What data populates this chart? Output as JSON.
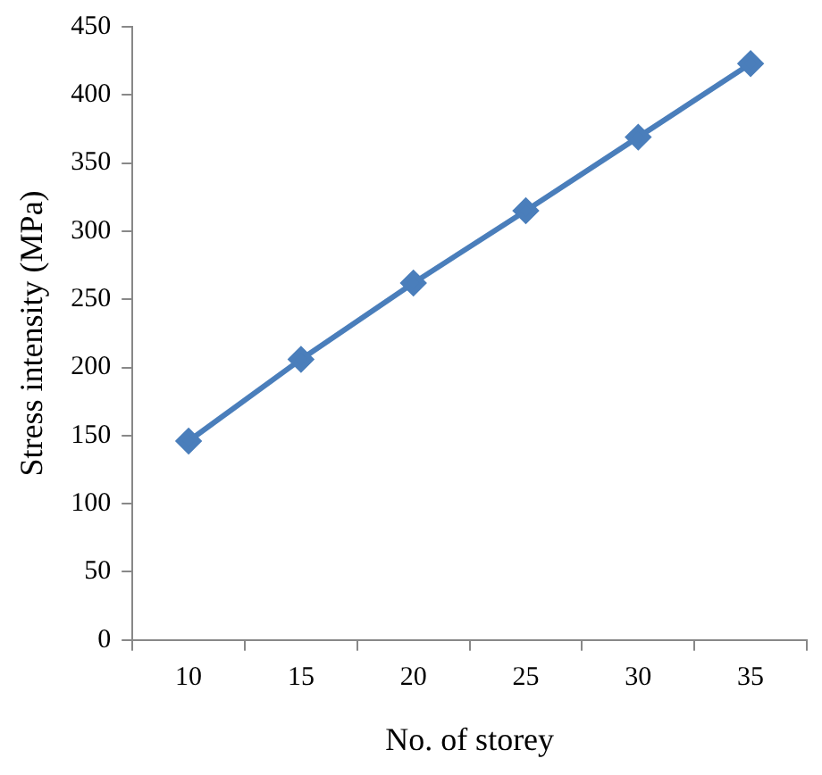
{
  "chart_data": {
    "type": "line",
    "xlabel": "No. of storey",
    "ylabel": "Stress intensity (MPa)",
    "categories": [
      "10",
      "15",
      "20",
      "25",
      "30",
      "35"
    ],
    "series": [
      {
        "color": "#4a7ebb",
        "values": [
          146,
          206,
          262,
          315,
          369,
          423
        ]
      }
    ],
    "ylim": [
      0,
      450
    ],
    "yticks": [
      0,
      50,
      100,
      150,
      200,
      250,
      300,
      350,
      400,
      450
    ],
    "grid": false,
    "legend": false,
    "marker": "diamond",
    "line_style": "solid"
  }
}
